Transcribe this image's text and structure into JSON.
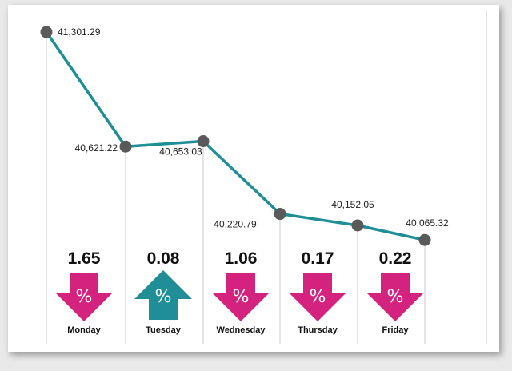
{
  "chart_data": {
    "type": "line",
    "x": [
      "Monday",
      "Tuesday",
      "Wednesday",
      "Thursday",
      "Friday",
      ""
    ],
    "values": [
      41301.29,
      40621.22,
      40653.03,
      40220.79,
      40152.05,
      40065.32
    ],
    "point_labels": [
      "41,301.29",
      "40,621.22",
      "40,653.03",
      "40,220.79",
      "40,152.05",
      "40,065.32"
    ],
    "daily_changes": [
      {
        "day": "Monday",
        "percent": "1.65",
        "direction": "down"
      },
      {
        "day": "Tuesday",
        "percent": "0.08",
        "direction": "up"
      },
      {
        "day": "Wednesday",
        "percent": "1.06",
        "direction": "down"
      },
      {
        "day": "Thursday",
        "percent": "0.17",
        "direction": "down"
      },
      {
        "day": "Friday",
        "percent": "0.22",
        "direction": "down"
      }
    ],
    "percent_symbol": "%",
    "ylim": [
      40000,
      41330
    ],
    "grid": false,
    "colors": {
      "line": "#1f8e96",
      "marker": "#5a5a5a",
      "down": "#d4227f",
      "up": "#1f8e96",
      "guide": "#c8c8c8"
    }
  }
}
